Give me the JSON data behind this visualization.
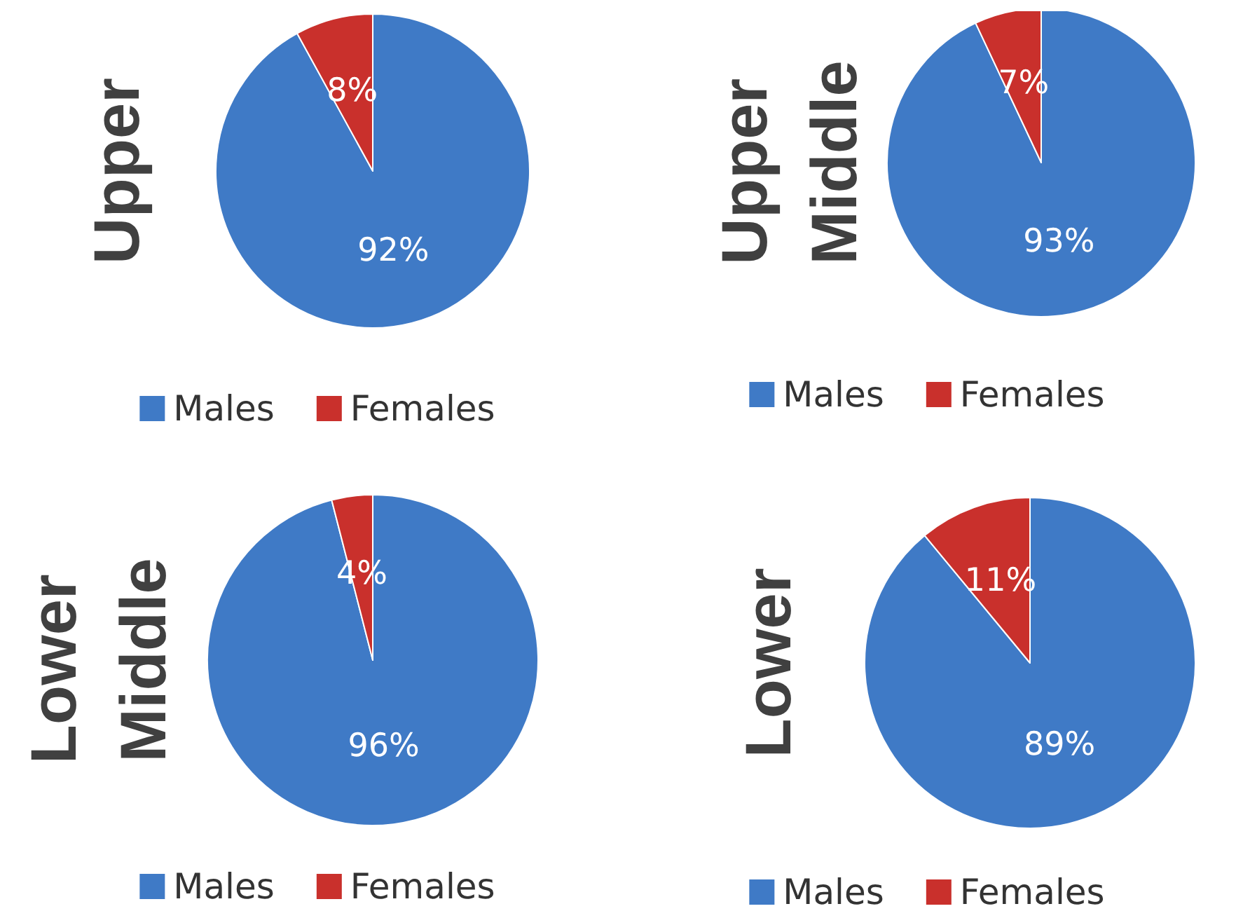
{
  "chart_data": [
    {
      "type": "pie",
      "title": "Upper",
      "categories": [
        "Males",
        "Females"
      ],
      "values": [
        92,
        8
      ],
      "value_labels": [
        "92%",
        "8%"
      ],
      "colors": [
        "#3f7ac6",
        "#c9302c"
      ],
      "legend": "bottom"
    },
    {
      "type": "pie",
      "title": "Upper Middle",
      "categories": [
        "Males",
        "Females"
      ],
      "values": [
        93,
        7
      ],
      "value_labels": [
        "93%",
        "7%"
      ],
      "colors": [
        "#3f7ac6",
        "#c9302c"
      ],
      "legend": "bottom"
    },
    {
      "type": "pie",
      "title": "Lower Middle",
      "categories": [
        "Males",
        "Females"
      ],
      "values": [
        96,
        4
      ],
      "value_labels": [
        "96%",
        "4%"
      ],
      "colors": [
        "#3f7ac6",
        "#c9302c"
      ],
      "legend": "bottom"
    },
    {
      "type": "pie",
      "title": "Lower",
      "categories": [
        "Males",
        "Females"
      ],
      "values": [
        89,
        11
      ],
      "value_labels": [
        "89%",
        "11%"
      ],
      "colors": [
        "#3f7ac6",
        "#c9302c"
      ],
      "legend": "bottom"
    }
  ]
}
